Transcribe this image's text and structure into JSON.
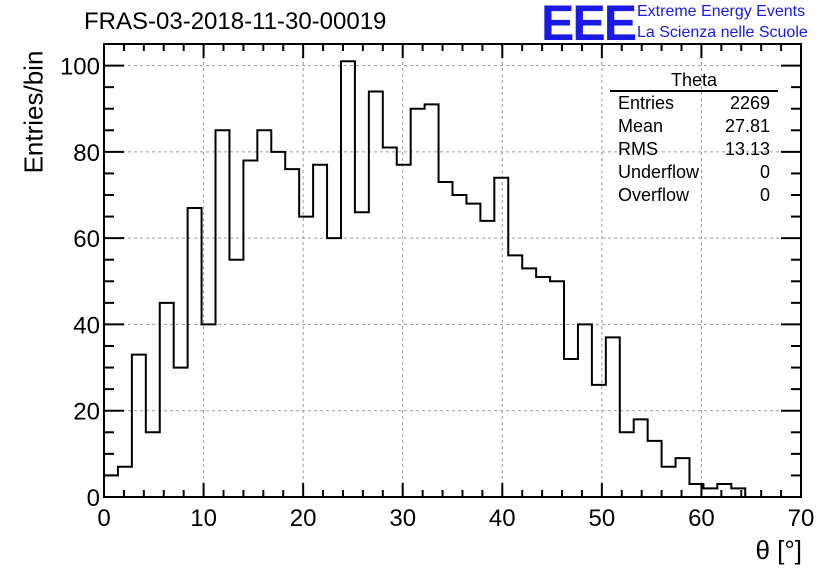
{
  "title": "FRAS-03-2018-11-30-00019",
  "logo": {
    "mark": "EEE",
    "line1": "Extreme Energy Events",
    "line2": "La Scienza nelle Scuole",
    "color": "#1a1ae6"
  },
  "stats_box": {
    "name": "Theta",
    "rows": [
      {
        "label": "Entries",
        "value": "2269"
      },
      {
        "label": "Mean",
        "value": "27.81"
      },
      {
        "label": "RMS",
        "value": "13.13"
      },
      {
        "label": "Underflow",
        "value": "0"
      },
      {
        "label": "Overflow",
        "value": "0"
      }
    ]
  },
  "chart_data": {
    "type": "bar",
    "histogram": true,
    "title": "FRAS-03-2018-11-30-00019",
    "xlabel": "θ [°]",
    "ylabel": "Entries/bin",
    "xlim": [
      0,
      70
    ],
    "ylim": [
      0,
      105
    ],
    "bin_width": 1.4,
    "x_ticks": [
      0,
      10,
      20,
      30,
      40,
      50,
      60,
      70
    ],
    "y_ticks": [
      0,
      20,
      40,
      60,
      80,
      100
    ],
    "grid": true,
    "values": [
      5,
      7,
      33,
      15,
      45,
      30,
      67,
      40,
      85,
      55,
      78,
      85,
      80,
      76,
      65,
      77,
      60,
      101,
      66,
      94,
      81,
      77,
      90,
      91,
      73,
      70,
      68,
      64,
      74,
      56,
      53,
      51,
      50,
      32,
      40,
      26,
      37,
      15,
      18,
      13,
      7,
      9,
      3,
      2,
      3,
      2,
      0,
      0,
      0,
      0
    ]
  }
}
